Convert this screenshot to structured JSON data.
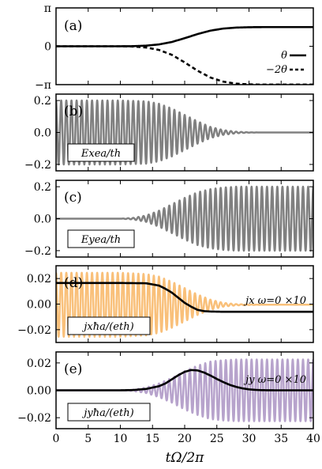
{
  "x_axis": {
    "label": "tΩ/2π",
    "range": [
      0,
      40
    ],
    "ticks": [
      0,
      5,
      10,
      15,
      20,
      25,
      30,
      35,
      40
    ],
    "tick_labels": [
      "0",
      "5",
      "10",
      "15",
      "20",
      "25",
      "30",
      "35",
      "40"
    ]
  },
  "colors": {
    "black": "#000000",
    "gray": "#808080",
    "orange": "#f9c07a",
    "purple": "#b7a3cc"
  },
  "chart_data": [
    {
      "type": "line",
      "panel_label": "(a)",
      "ylim": [
        -3.1416,
        3.1416
      ],
      "yticks": [
        -3.1416,
        0,
        3.1416
      ],
      "ytick_labels": [
        "−π",
        "0",
        "π"
      ],
      "series": [
        {
          "name": "θ",
          "style": "solid",
          "color": "#000000",
          "x": [
            0,
            10,
            12,
            14,
            16,
            18,
            20,
            22,
            24,
            26,
            28,
            30,
            32,
            34,
            36,
            40
          ],
          "y": [
            0,
            0,
            0.01,
            0.05,
            0.15,
            0.35,
            0.66,
            1.0,
            1.28,
            1.45,
            1.53,
            1.56,
            1.57,
            1.57,
            1.57,
            1.57
          ]
        },
        {
          "name": "−2θ",
          "style": "dashed",
          "color": "#000000",
          "x": [
            0,
            10,
            12,
            14,
            16,
            18,
            20,
            22,
            24,
            26,
            28,
            30,
            32,
            34,
            36,
            40
          ],
          "y": [
            0,
            0,
            -0.02,
            -0.1,
            -0.3,
            -0.7,
            -1.32,
            -2.0,
            -2.56,
            -2.9,
            -3.06,
            -3.12,
            -3.14,
            -3.14,
            -3.14,
            -3.14
          ]
        }
      ]
    },
    {
      "type": "line",
      "panel_label": "(b)",
      "ylim": [
        -0.24,
        0.24
      ],
      "yticks": [
        -0.2,
        0,
        0.2
      ],
      "ytick_labels": [
        "−0.2",
        "0.0",
        "0.2"
      ],
      "box_label": "Exea/th",
      "series": [
        {
          "style": "oscillation",
          "color": "#808080",
          "oscillation_period": 0.8,
          "envelope_x": [
            0,
            10,
            14,
            16,
            18,
            20,
            22,
            24,
            26,
            28,
            30,
            32,
            40
          ],
          "envelope_y": [
            0.2,
            0.2,
            0.195,
            0.18,
            0.15,
            0.11,
            0.07,
            0.035,
            0.015,
            0.005,
            0.001,
            0,
            0
          ]
        }
      ]
    },
    {
      "type": "line",
      "panel_label": "(c)",
      "ylim": [
        -0.24,
        0.24
      ],
      "yticks": [
        -0.2,
        0,
        0.2
      ],
      "ytick_labels": [
        "−0.2",
        "0.0",
        "0.2"
      ],
      "box_label": "Eyea/th",
      "series": [
        {
          "style": "oscillation",
          "color": "#808080",
          "oscillation_period": 0.8,
          "envelope_x": [
            0,
            10,
            12,
            14,
            16,
            18,
            20,
            22,
            24,
            26,
            28,
            30,
            40
          ],
          "envelope_y": [
            0,
            0,
            0.005,
            0.02,
            0.05,
            0.09,
            0.13,
            0.165,
            0.185,
            0.195,
            0.2,
            0.2,
            0.2
          ]
        }
      ]
    },
    {
      "type": "line",
      "panel_label": "(d)",
      "ylim": [
        -0.03,
        0.03
      ],
      "yticks": [
        -0.02,
        0,
        0.02
      ],
      "ytick_labels": [
        "−0.02",
        "0.00",
        "0.02"
      ],
      "box_label": "jxħa/(eth)",
      "annotation": "jx ω=0 ×10",
      "series": [
        {
          "style": "oscillation",
          "color": "#f9c07a",
          "oscillation_period": 0.8,
          "offset": -0.0005,
          "envelope_x": [
            0,
            10,
            14,
            16,
            18,
            20,
            22,
            24,
            26,
            28,
            30,
            32,
            40
          ],
          "envelope_y": [
            0.025,
            0.025,
            0.024,
            0.022,
            0.018,
            0.013,
            0.008,
            0.004,
            0.0015,
            0.0005,
            0.0002,
            0,
            0
          ]
        },
        {
          "style": "solid",
          "color": "#000000",
          "x": [
            0,
            10,
            14,
            16,
            17,
            18,
            19,
            20,
            21,
            22,
            23,
            24,
            26,
            28,
            30,
            40
          ],
          "y": [
            0.0165,
            0.0165,
            0.0163,
            0.0145,
            0.012,
            0.009,
            0.005,
            0.001,
            -0.002,
            -0.0045,
            -0.0055,
            -0.0058,
            -0.006,
            -0.006,
            -0.006,
            -0.006
          ]
        }
      ]
    },
    {
      "type": "line",
      "panel_label": "(e)",
      "ylim": [
        -0.028,
        0.028
      ],
      "yticks": [
        -0.02,
        0,
        0.02
      ],
      "ytick_labels": [
        "−0.02",
        "0.00",
        "0.02"
      ],
      "box_label": "jyħa/(eth)",
      "annotation": "jy ω=0 ×10",
      "series": [
        {
          "style": "oscillation",
          "color": "#b7a3cc",
          "oscillation_period": 0.8,
          "envelope_x": [
            0,
            10,
            12,
            14,
            16,
            18,
            20,
            22,
            24,
            26,
            28,
            30,
            40
          ],
          "envelope_y": [
            0,
            0,
            0.0005,
            0.002,
            0.005,
            0.009,
            0.014,
            0.018,
            0.021,
            0.022,
            0.0225,
            0.0225,
            0.0225
          ]
        },
        {
          "style": "solid",
          "color": "#000000",
          "x": [
            0,
            10,
            12,
            14,
            16,
            17,
            18,
            19,
            20,
            21,
            22,
            23,
            24,
            25,
            26,
            27,
            28,
            29,
            30,
            31,
            32,
            34,
            40
          ],
          "y": [
            0,
            0,
            0.0002,
            0.001,
            0.003,
            0.005,
            0.008,
            0.011,
            0.0135,
            0.0148,
            0.0145,
            0.013,
            0.0108,
            0.0083,
            0.006,
            0.004,
            0.0025,
            0.0014,
            0.0007,
            0.0003,
            0.0001,
            0,
            0
          ]
        }
      ]
    }
  ]
}
